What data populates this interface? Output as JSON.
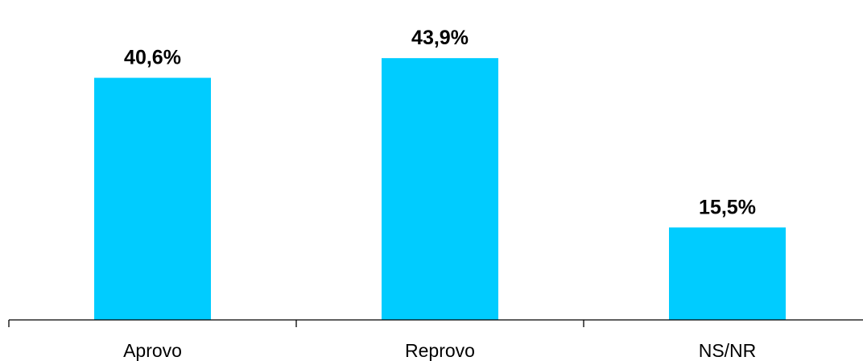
{
  "chart_data": {
    "type": "bar",
    "categories": [
      "Aprovo",
      "Reprovo",
      "NS/NR"
    ],
    "values": [
      40.6,
      43.9,
      15.5
    ],
    "value_labels": [
      "40,6%",
      "43,9%",
      "15,5%"
    ],
    "ylim": [
      0,
      50
    ],
    "grid": false,
    "legend": "none"
  },
  "colors": {
    "bar": "#00ccff",
    "axis": "#000000"
  }
}
